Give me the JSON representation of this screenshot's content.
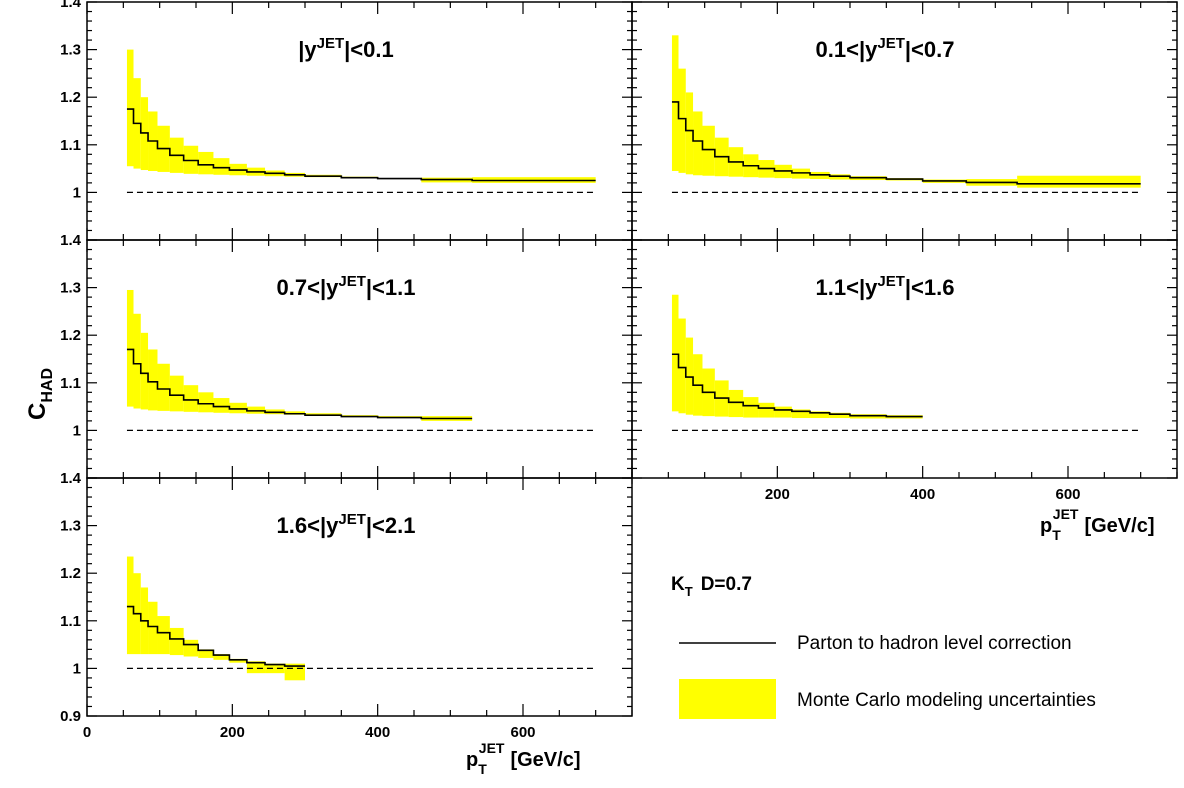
{
  "chart_data": [
    {
      "type": "line",
      "title": "|y^JET|<0.1",
      "xlim": [
        0,
        750
      ],
      "ylim": [
        0.9,
        1.4
      ],
      "reference_line": 1.0,
      "bins": [
        [
          55,
          64
        ],
        [
          64,
          74
        ],
        [
          74,
          84
        ],
        [
          84,
          97
        ],
        [
          97,
          114
        ],
        [
          114,
          133
        ],
        [
          133,
          153
        ],
        [
          153,
          174
        ],
        [
          174,
          196
        ],
        [
          196,
          220
        ],
        [
          220,
          245
        ],
        [
          245,
          272
        ],
        [
          272,
          300
        ],
        [
          300,
          350
        ],
        [
          350,
          400
        ],
        [
          400,
          460
        ],
        [
          460,
          530
        ],
        [
          530,
          700
        ]
      ],
      "series": [
        {
          "name": "Parton to hadron level correction",
          "values": [
            1.175,
            1.145,
            1.125,
            1.108,
            1.092,
            1.078,
            1.067,
            1.058,
            1.052,
            1.047,
            1.043,
            1.04,
            1.037,
            1.034,
            1.031,
            1.029,
            1.027,
            1.025
          ]
        },
        {
          "name": "Monte Carlo modeling uncertainties (low)",
          "values": [
            1.055,
            1.05,
            1.047,
            1.045,
            1.043,
            1.041,
            1.039,
            1.038,
            1.037,
            1.036,
            1.035,
            1.034,
            1.033,
            1.032,
            1.031,
            1.029,
            1.021,
            1.02
          ]
        },
        {
          "name": "Monte Carlo modeling uncertainties (high)",
          "values": [
            1.3,
            1.24,
            1.2,
            1.17,
            1.14,
            1.115,
            1.098,
            1.085,
            1.072,
            1.06,
            1.052,
            1.046,
            1.041,
            1.037,
            1.033,
            1.03,
            1.031,
            1.032
          ]
        }
      ]
    },
    {
      "type": "line",
      "title": "0.1<|y^JET|<0.7",
      "xlim": [
        0,
        750
      ],
      "ylim": [
        0.9,
        1.4
      ],
      "reference_line": 1.0,
      "bins": [
        [
          55,
          64
        ],
        [
          64,
          74
        ],
        [
          74,
          84
        ],
        [
          84,
          97
        ],
        [
          97,
          114
        ],
        [
          114,
          133
        ],
        [
          133,
          153
        ],
        [
          153,
          174
        ],
        [
          174,
          196
        ],
        [
          196,
          220
        ],
        [
          220,
          245
        ],
        [
          245,
          272
        ],
        [
          272,
          300
        ],
        [
          300,
          350
        ],
        [
          350,
          400
        ],
        [
          400,
          460
        ],
        [
          460,
          530
        ],
        [
          530,
          700
        ]
      ],
      "series": [
        {
          "name": "Parton to hadron level correction",
          "values": [
            1.19,
            1.155,
            1.13,
            1.108,
            1.09,
            1.075,
            1.064,
            1.056,
            1.05,
            1.045,
            1.041,
            1.037,
            1.034,
            1.031,
            1.028,
            1.024,
            1.021,
            1.018
          ]
        },
        {
          "name": "Monte Carlo modeling uncertainties (low)",
          "values": [
            1.045,
            1.041,
            1.038,
            1.036,
            1.035,
            1.034,
            1.033,
            1.032,
            1.031,
            1.03,
            1.029,
            1.028,
            1.027,
            1.026,
            1.025,
            1.02,
            1.014,
            1.01
          ]
        },
        {
          "name": "Monte Carlo modeling uncertainties (high)",
          "values": [
            1.33,
            1.26,
            1.21,
            1.17,
            1.14,
            1.115,
            1.095,
            1.08,
            1.068,
            1.058,
            1.05,
            1.043,
            1.038,
            1.034,
            1.03,
            1.027,
            1.028,
            1.035
          ]
        }
      ]
    },
    {
      "type": "line",
      "title": "0.7<|y^JET|<1.1",
      "xlim": [
        0,
        750
      ],
      "ylim": [
        0.9,
        1.4
      ],
      "reference_line": 1.0,
      "bins": [
        [
          55,
          64
        ],
        [
          64,
          74
        ],
        [
          74,
          84
        ],
        [
          84,
          97
        ],
        [
          97,
          114
        ],
        [
          114,
          133
        ],
        [
          133,
          153
        ],
        [
          153,
          174
        ],
        [
          174,
          196
        ],
        [
          196,
          220
        ],
        [
          220,
          245
        ],
        [
          245,
          272
        ],
        [
          272,
          300
        ],
        [
          300,
          350
        ],
        [
          350,
          400
        ],
        [
          400,
          460
        ],
        [
          460,
          530
        ]
      ],
      "series": [
        {
          "name": "Parton to hadron level correction",
          "values": [
            1.17,
            1.14,
            1.12,
            1.102,
            1.087,
            1.074,
            1.064,
            1.056,
            1.05,
            1.045,
            1.041,
            1.038,
            1.035,
            1.032,
            1.029,
            1.027,
            1.025
          ]
        },
        {
          "name": "Monte Carlo modeling uncertainties (low)",
          "values": [
            1.05,
            1.046,
            1.044,
            1.042,
            1.041,
            1.04,
            1.039,
            1.038,
            1.037,
            1.036,
            1.035,
            1.034,
            1.033,
            1.032,
            1.03,
            1.028,
            1.02
          ]
        },
        {
          "name": "Monte Carlo modeling uncertainties (high)",
          "values": [
            1.295,
            1.245,
            1.205,
            1.17,
            1.14,
            1.115,
            1.095,
            1.08,
            1.068,
            1.058,
            1.05,
            1.044,
            1.04,
            1.036,
            1.032,
            1.03,
            1.03
          ]
        }
      ]
    },
    {
      "type": "line",
      "title": "1.1<|y^JET|<1.6",
      "xlim": [
        0,
        750
      ],
      "ylim": [
        0.9,
        1.4
      ],
      "reference_line": 1.0,
      "bins": [
        [
          55,
          64
        ],
        [
          64,
          74
        ],
        [
          74,
          84
        ],
        [
          84,
          97
        ],
        [
          97,
          114
        ],
        [
          114,
          133
        ],
        [
          133,
          153
        ],
        [
          153,
          174
        ],
        [
          174,
          196
        ],
        [
          196,
          220
        ],
        [
          220,
          245
        ],
        [
          245,
          272
        ],
        [
          272,
          300
        ],
        [
          300,
          350
        ],
        [
          350,
          400
        ]
      ],
      "series": [
        {
          "name": "Parton to hadron level correction",
          "values": [
            1.16,
            1.132,
            1.112,
            1.095,
            1.08,
            1.068,
            1.059,
            1.052,
            1.047,
            1.043,
            1.04,
            1.037,
            1.034,
            1.031,
            1.029
          ]
        },
        {
          "name": "Monte Carlo modeling uncertainties (low)",
          "values": [
            1.04,
            1.036,
            1.033,
            1.031,
            1.03,
            1.029,
            1.028,
            1.027,
            1.027,
            1.027,
            1.026,
            1.026,
            1.026,
            1.025,
            1.025
          ]
        },
        {
          "name": "Monte Carlo modeling uncertainties (high)",
          "values": [
            1.285,
            1.235,
            1.195,
            1.16,
            1.13,
            1.105,
            1.085,
            1.07,
            1.058,
            1.05,
            1.044,
            1.04,
            1.037,
            1.034,
            1.032
          ]
        }
      ]
    },
    {
      "type": "line",
      "title": "1.6<|y^JET|<2.1",
      "xlim": [
        0,
        750
      ],
      "ylim": [
        0.9,
        1.4
      ],
      "reference_line": 1.0,
      "bins": [
        [
          55,
          64
        ],
        [
          64,
          74
        ],
        [
          74,
          84
        ],
        [
          84,
          97
        ],
        [
          97,
          114
        ],
        [
          114,
          133
        ],
        [
          133,
          153
        ],
        [
          153,
          174
        ],
        [
          174,
          196
        ],
        [
          196,
          220
        ],
        [
          220,
          245
        ],
        [
          245,
          272
        ],
        [
          272,
          300
        ]
      ],
      "series": [
        {
          "name": "Parton to hadron level correction",
          "values": [
            1.13,
            1.115,
            1.1,
            1.088,
            1.075,
            1.062,
            1.05,
            1.038,
            1.028,
            1.018,
            1.012,
            1.008,
            1.005
          ]
        },
        {
          "name": "Monte Carlo modeling uncertainties (low)",
          "values": [
            1.03,
            1.03,
            1.03,
            1.03,
            1.03,
            1.028,
            1.025,
            1.022,
            1.018,
            1.012,
            0.99,
            0.99,
            0.975
          ]
        },
        {
          "name": "Monte Carlo modeling uncertainties (high)",
          "values": [
            1.235,
            1.2,
            1.17,
            1.14,
            1.11,
            1.085,
            1.06,
            1.04,
            1.03,
            1.02,
            1.015,
            1.01,
            1.01
          ]
        }
      ]
    }
  ],
  "axis": {
    "ylabel_main": "C",
    "ylabel_sub": "HAD",
    "xlabel_main": "p",
    "xlabel_sub": "T",
    "xlabel_sup": "JET",
    "xlabel_units": "[GeV/c]",
    "yticks": [
      "0.9",
      "1",
      "1.1",
      "1.2",
      "1.3",
      "1.4"
    ],
    "xticks": [
      "0",
      "200",
      "400",
      "600"
    ],
    "xticks_right": [
      "200",
      "400",
      "600"
    ]
  },
  "legend": {
    "algo_main": "K",
    "algo_sub": "T",
    "algo_param": "D=0.7",
    "line_label": "Parton to hadron level correction",
    "band_label": "Monte Carlo modeling uncertainties"
  },
  "colors": {
    "band": "#ffff00",
    "line": "#000000",
    "frame": "#000000"
  }
}
